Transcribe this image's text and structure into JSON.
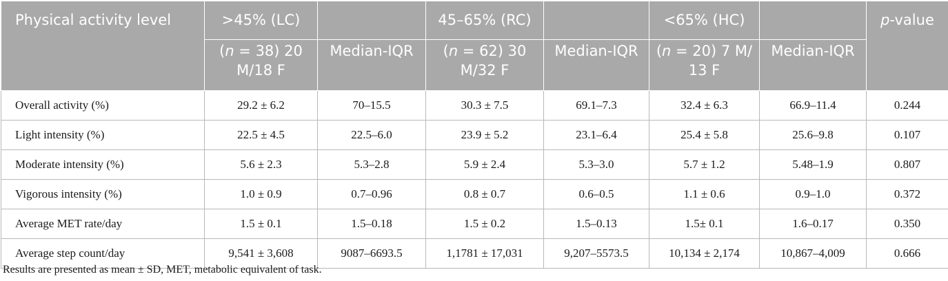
{
  "header": {
    "row1": {
      "physical_activity_level": "Physical activity level",
      "lc": ">45% (LC)",
      "rc": "45–65% (RC)",
      "hc": "<65% (HC)",
      "p_value_italic": "p",
      "p_value_rest": "-value"
    },
    "row2": {
      "lc_n_open": "(",
      "lc_n_italic": "n",
      "lc_n_rest": " = 38) 20 M/18 F",
      "median_iqr": "Median-IQR",
      "rc_n_open": "(",
      "rc_n_italic": "n",
      "rc_n_rest": " = 62) 30 M/32 F",
      "hc_n_open": "(",
      "hc_n_italic": "n",
      "hc_n_rest": " = 20) 7 M/ 13 F"
    }
  },
  "rows": [
    {
      "label": "Overall activity (%)",
      "lc_mean": "29.2 ± 6.2",
      "lc_iqr": "70–15.5",
      "rc_mean": "30.3 ± 7.5",
      "rc_iqr": "69.1–7.3",
      "hc_mean": "32.4 ± 6.3",
      "hc_iqr": "66.9–11.4",
      "p": "0.244"
    },
    {
      "label": "Light intensity (%)",
      "lc_mean": "22.5 ± 4.5",
      "lc_iqr": "22.5–6.0",
      "rc_mean": "23.9 ± 5.2",
      "rc_iqr": "23.1–6.4",
      "hc_mean": "25.4 ± 5.8",
      "hc_iqr": "25.6–9.8",
      "p": "0.107"
    },
    {
      "label": "Moderate intensity (%)",
      "lc_mean": "5.6 ± 2.3",
      "lc_iqr": "5.3–2.8",
      "rc_mean": "5.9 ± 2.4",
      "rc_iqr": "5.3–3.0",
      "hc_mean": "5.7 ± 1.2",
      "hc_iqr": "5.48–1.9",
      "p": "0.807"
    },
    {
      "label": "Vigorous intensity (%)",
      "lc_mean": "1.0 ± 0.9",
      "lc_iqr": "0.7–0.96",
      "rc_mean": "0.8 ± 0.7",
      "rc_iqr": "0.6–0.5",
      "hc_mean": "1.1 ± 0.6",
      "hc_iqr": "0.9–1.0",
      "p": "0.372"
    },
    {
      "label": "Average MET rate/day",
      "lc_mean": "1.5 ± 0.1",
      "lc_iqr": "1.5–0.18",
      "rc_mean": "1.5 ± 0.2",
      "rc_iqr": "1.5–0.13",
      "hc_mean": "1.5± 0.1",
      "hc_iqr": "1.6–0.17",
      "p": "0.350"
    },
    {
      "label": "Average step count/day",
      "lc_mean": "9,541 ± 3,608",
      "lc_iqr": "9087–6693.5",
      "rc_mean": "1,1781 ± 17,031",
      "rc_iqr": "9,207–5573.5",
      "hc_mean": "10,134 ± 2,174",
      "hc_iqr": "10,867–4,009",
      "p": "0.666"
    }
  ],
  "footnote": "Results are presented as mean ± SD, MET, metabolic equivalent of task."
}
